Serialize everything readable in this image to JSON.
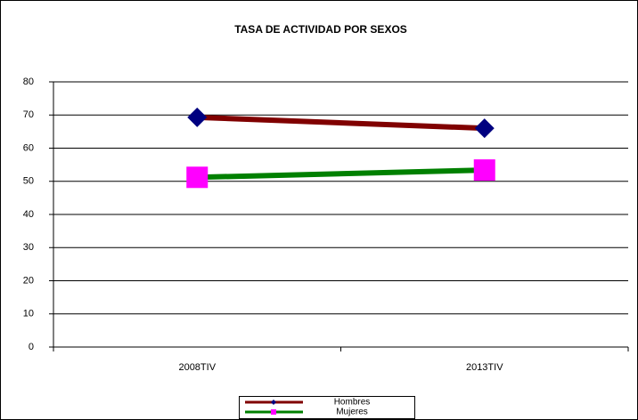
{
  "chart_data": {
    "type": "line",
    "title": "TASA DE ACTIVIDAD POR SEXOS",
    "categories": [
      "2008TIV",
      "2013TIV"
    ],
    "series": [
      {
        "name": "Hombres",
        "color": "#800000",
        "marker": "diamond",
        "marker_color": "#000080",
        "values": [
          69.3,
          66.0
        ]
      },
      {
        "name": "Mujeres",
        "color": "#008000",
        "marker": "square",
        "marker_color": "#ff00ff",
        "values": [
          51.2,
          53.4
        ]
      }
    ],
    "ylim": [
      0,
      80
    ],
    "yticks": [
      0,
      10,
      20,
      30,
      40,
      50,
      60,
      70,
      80
    ],
    "grid": true,
    "legend": "bottom"
  }
}
